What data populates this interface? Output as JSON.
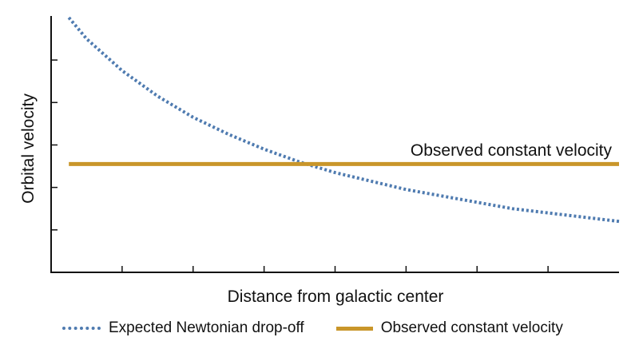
{
  "chart_data": {
    "type": "line",
    "xlabel": "Distance from galactic center",
    "ylabel": "Orbital velocity",
    "xlim": [
      0,
      8
    ],
    "ylim": [
      0,
      6
    ],
    "x_ticks": [
      1,
      2,
      3,
      4,
      5,
      6,
      7
    ],
    "y_ticks": [
      1,
      2,
      3,
      4,
      5
    ],
    "series": [
      {
        "name": "Expected Newtonian drop-off",
        "style": "dotted",
        "color": "#4f7bb0",
        "x": [
          0.25,
          0.5,
          1,
          1.5,
          2,
          2.5,
          3,
          3.5,
          4,
          4.5,
          5,
          5.5,
          6,
          6.5,
          7,
          7.5,
          8
        ],
        "y": [
          6.0,
          5.5,
          4.75,
          4.15,
          3.65,
          3.25,
          2.9,
          2.6,
          2.35,
          2.15,
          1.95,
          1.8,
          1.65,
          1.5,
          1.4,
          1.3,
          1.2
        ]
      },
      {
        "name": "Observed constant velocity",
        "style": "solid",
        "color": "#c9962a",
        "x": [
          0.25,
          8
        ],
        "y": [
          2.55,
          2.55
        ]
      }
    ],
    "annotations": [
      {
        "text": "Observed constant velocity"
      }
    ],
    "legend": "bottom",
    "grid": false
  }
}
